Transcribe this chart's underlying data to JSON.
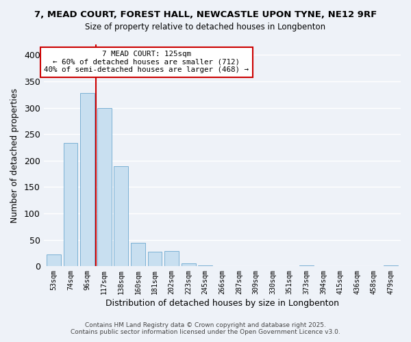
{
  "title": "7, MEAD COURT, FOREST HALL, NEWCASTLE UPON TYNE, NE12 9RF",
  "subtitle": "Size of property relative to detached houses in Longbenton",
  "xlabel": "Distribution of detached houses by size in Longbenton",
  "ylabel": "Number of detached properties",
  "bar_color": "#c8dff0",
  "bar_edge_color": "#7ab0d4",
  "background_color": "#eef2f8",
  "grid_color": "#ffffff",
  "bin_labels": [
    "53sqm",
    "74sqm",
    "96sqm",
    "117sqm",
    "138sqm",
    "160sqm",
    "181sqm",
    "202sqm",
    "223sqm",
    "245sqm",
    "266sqm",
    "287sqm",
    "309sqm",
    "330sqm",
    "351sqm",
    "373sqm",
    "394sqm",
    "415sqm",
    "436sqm",
    "458sqm",
    "479sqm"
  ],
  "bar_heights": [
    22,
    234,
    328,
    300,
    190,
    44,
    28,
    29,
    5,
    2,
    0,
    0,
    0,
    0,
    0,
    2,
    0,
    0,
    0,
    0,
    2
  ],
  "ylim": [
    0,
    420
  ],
  "yticks": [
    0,
    50,
    100,
    150,
    200,
    250,
    300,
    350,
    400
  ],
  "annotation_line1": "7 MEAD COURT: 125sqm",
  "annotation_line2": "← 60% of detached houses are smaller (712)",
  "annotation_line3": "40% of semi-detached houses are larger (468) →",
  "annotation_box_color": "#ffffff",
  "annotation_border_color": "#cc0000",
  "vline_color": "#cc0000",
  "vline_x": 2.5,
  "footer_line1": "Contains HM Land Registry data © Crown copyright and database right 2025.",
  "footer_line2": "Contains public sector information licensed under the Open Government Licence v3.0."
}
